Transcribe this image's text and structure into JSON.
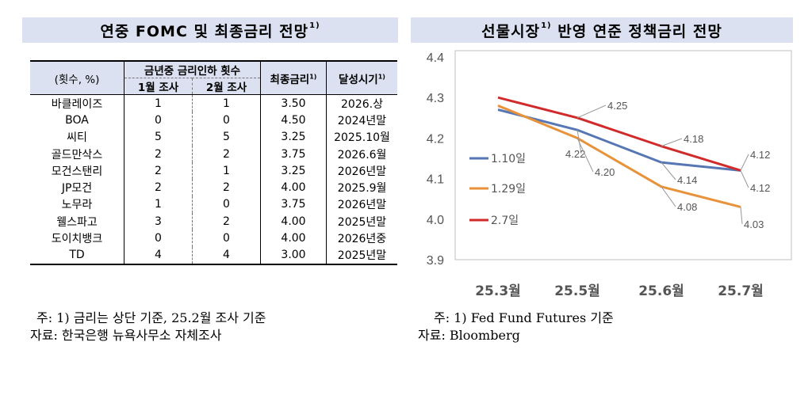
{
  "left": {
    "title": "연중 FOMC 및 최종금리 전망",
    "title_sup": "1)",
    "header": {
      "unit": "(횟수, %)",
      "cuts_group": "금년중 금리인하 횟수",
      "jan": "1월 조사",
      "feb": "2월 조사",
      "terminal": "최종금리",
      "terminal_sup": "1)",
      "timing": "달성시기",
      "timing_sup": "1)"
    },
    "rows": [
      {
        "bank": "바클레이즈",
        "jan": "1",
        "feb": "1",
        "rate": "3.50",
        "when": "2026.상"
      },
      {
        "bank": "BOA",
        "jan": "0",
        "feb": "0",
        "rate": "4.50",
        "when": "2024년말"
      },
      {
        "bank": "씨티",
        "jan": "5",
        "feb": "5",
        "rate": "3.25",
        "when": "2025.10월"
      },
      {
        "bank": "골드만삭스",
        "jan": "2",
        "feb": "2",
        "rate": "3.75",
        "when": "2026.6월"
      },
      {
        "bank": "모건스탠리",
        "jan": "2",
        "feb": "1",
        "rate": "3.25",
        "when": "2026년말"
      },
      {
        "bank": "JP모건",
        "jan": "2",
        "feb": "2",
        "rate": "4.00",
        "when": "2025.9월"
      },
      {
        "bank": "노무라",
        "jan": "1",
        "feb": "0",
        "rate": "3.75",
        "when": "2026년말"
      },
      {
        "bank": "웰스파고",
        "jan": "3",
        "feb": "2",
        "rate": "4.00",
        "when": "2025년말"
      },
      {
        "bank": "도이치뱅크",
        "jan": "0",
        "feb": "0",
        "rate": "4.00",
        "when": "2026년중"
      },
      {
        "bank": "TD",
        "jan": "4",
        "feb": "4",
        "rate": "3.00",
        "when": "2025년말"
      }
    ],
    "note1": "주: 1) 금리는 상단 기준, 25.2월 조사 기준",
    "note2": "자료: 한국은행 뉴욕사무소 자체조사"
  },
  "right": {
    "title": "선물시장",
    "title_sup": "1)",
    "title_rest": " 반영 연준 정책금리 전망",
    "note1": "주: 1) Fed Fund Futures 기준",
    "note2": "자료: Bloomberg"
  },
  "chart_data": {
    "type": "line",
    "categories": [
      "25.3월",
      "25.5월",
      "25.6월",
      "25.7월"
    ],
    "ylim": [
      3.9,
      4.4
    ],
    "yticks": [
      "3.9",
      "4.0",
      "4.1",
      "4.2",
      "4.3",
      "4.4"
    ],
    "grid": false,
    "legend_position": "left",
    "series": [
      {
        "name": "1.10일",
        "color": "#5677b4",
        "values": [
          4.27,
          4.22,
          4.14,
          4.12
        ],
        "labels": {
          "1": "4.22",
          "2": "4.14",
          "3": "4.12"
        }
      },
      {
        "name": "1.29일",
        "color": "#e8923a",
        "values": [
          4.28,
          4.2,
          4.08,
          4.03
        ],
        "labels": {
          "1": "4.20",
          "2": "4.08",
          "3": "4.03"
        }
      },
      {
        "name": "2.7일",
        "color": "#d12a2a",
        "values": [
          4.3,
          4.25,
          4.18,
          4.12
        ],
        "labels": {
          "1": "4.25",
          "2": "4.18",
          "3": "4.12"
        }
      }
    ]
  }
}
